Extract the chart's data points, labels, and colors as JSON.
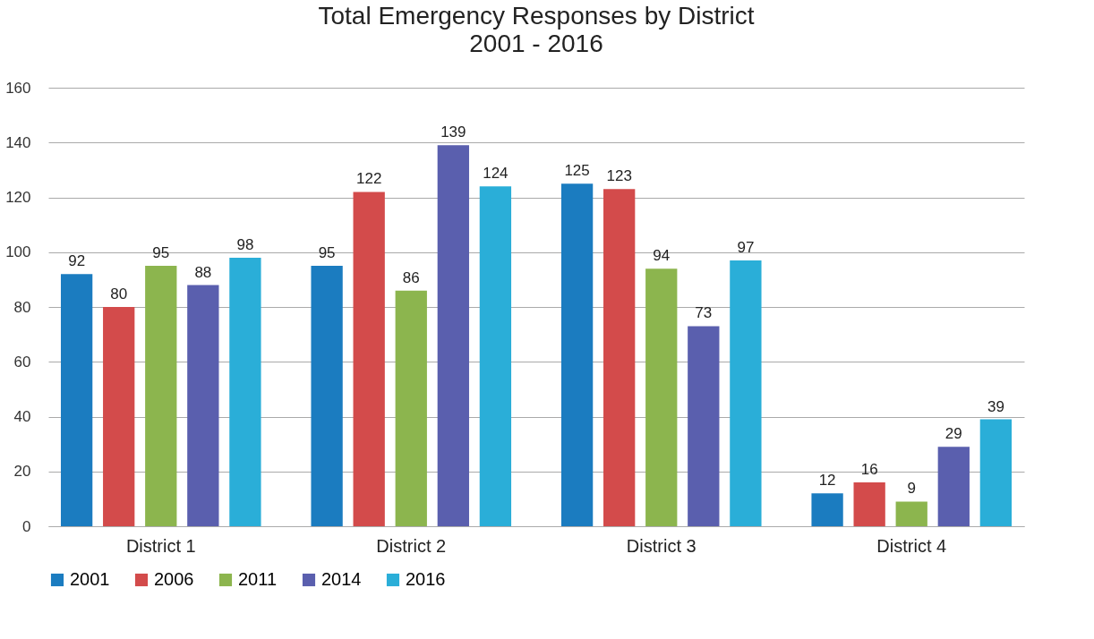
{
  "chart_data": {
    "type": "bar",
    "title": "Total Emergency Responses by District",
    "subtitle": "2001 - 2016",
    "categories": [
      "District 1",
      "District 2",
      "District 3",
      "District 4"
    ],
    "series": [
      {
        "name": "2001",
        "color": "#1b7cc0",
        "values": [
          92,
          95,
          125,
          12
        ]
      },
      {
        "name": "2006",
        "color": "#d34b4b",
        "values": [
          80,
          122,
          123,
          16
        ]
      },
      {
        "name": "2011",
        "color": "#8cb54e",
        "values": [
          95,
          86,
          94,
          9
        ]
      },
      {
        "name": "2014",
        "color": "#5a5fae",
        "values": [
          88,
          139,
          73,
          29
        ]
      },
      {
        "name": "2016",
        "color": "#2aaed8",
        "values": [
          98,
          124,
          97,
          39
        ]
      }
    ],
    "ylim": [
      0,
      160
    ],
    "yticks": [
      0,
      20,
      40,
      60,
      80,
      100,
      120,
      140,
      160
    ],
    "grid": "y",
    "legend": "bottom",
    "data_labels": true
  }
}
